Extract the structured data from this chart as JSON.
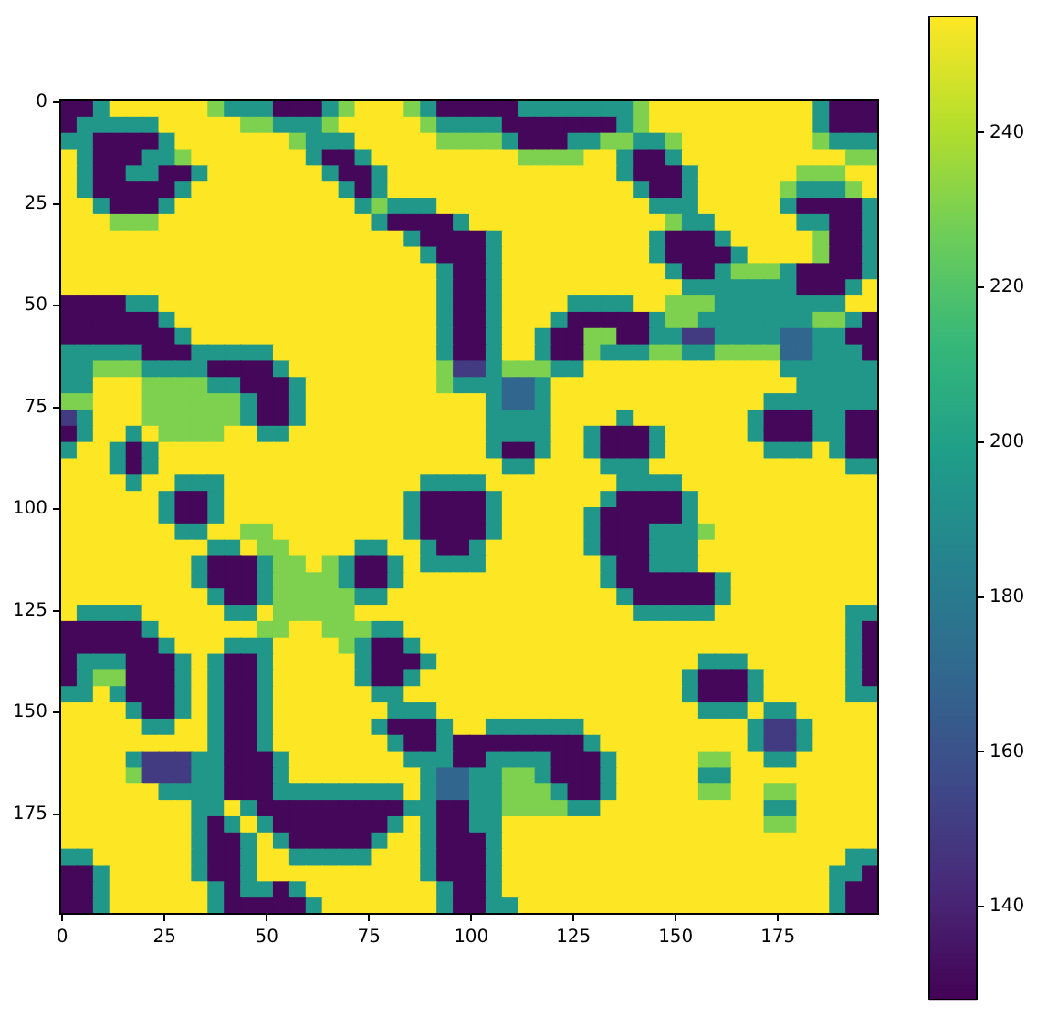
{
  "chart_data": {
    "type": "heatmap",
    "xlim": [
      -0.5,
      199.5
    ],
    "xticks": [
      0,
      25,
      50,
      75,
      100,
      125,
      150,
      175
    ],
    "ylim": [
      199.5,
      -0.5
    ],
    "yticks": [
      0,
      25,
      50,
      75,
      100,
      125,
      150,
      175
    ],
    "clim": [
      128,
      255
    ],
    "cticks": [
      140,
      160,
      180,
      200,
      220,
      240
    ],
    "cells": [
      [
        130,
        130,
        195,
        255,
        255,
        255,
        255,
        255,
        255,
        230,
        195,
        195,
        195,
        130,
        130,
        130,
        195,
        230,
        255,
        255,
        255,
        230,
        195,
        130,
        130,
        130,
        130,
        130,
        195,
        195,
        195,
        195,
        195,
        195,
        195,
        230,
        255,
        255,
        255,
        255,
        255,
        255,
        255,
        255,
        255,
        255,
        195,
        130,
        130,
        130
      ],
      [
        130,
        195,
        195,
        195,
        195,
        195,
        255,
        255,
        255,
        255,
        255,
        230,
        230,
        195,
        195,
        195,
        230,
        255,
        255,
        255,
        255,
        255,
        230,
        195,
        195,
        195,
        195,
        130,
        130,
        130,
        130,
        130,
        130,
        130,
        195,
        230,
        255,
        255,
        255,
        255,
        255,
        255,
        255,
        255,
        255,
        255,
        195,
        130,
        130,
        130
      ],
      [
        195,
        195,
        130,
        130,
        130,
        130,
        195,
        255,
        255,
        255,
        255,
        255,
        255,
        255,
        230,
        195,
        195,
        195,
        255,
        255,
        255,
        255,
        255,
        230,
        230,
        230,
        230,
        195,
        130,
        130,
        130,
        195,
        195,
        230,
        230,
        195,
        195,
        230,
        255,
        255,
        255,
        255,
        255,
        255,
        255,
        255,
        230,
        195,
        195,
        195
      ],
      [
        255,
        195,
        130,
        130,
        130,
        195,
        195,
        230,
        255,
        255,
        255,
        255,
        255,
        255,
        255,
        195,
        130,
        130,
        195,
        255,
        255,
        255,
        255,
        255,
        255,
        255,
        255,
        255,
        230,
        230,
        230,
        230,
        255,
        255,
        195,
        130,
        130,
        195,
        255,
        255,
        255,
        255,
        255,
        255,
        255,
        255,
        255,
        255,
        230,
        230
      ],
      [
        255,
        195,
        130,
        130,
        195,
        195,
        130,
        130,
        195,
        255,
        255,
        255,
        255,
        255,
        255,
        255,
        195,
        130,
        130,
        195,
        255,
        255,
        255,
        255,
        255,
        255,
        255,
        255,
        255,
        255,
        255,
        255,
        255,
        255,
        195,
        130,
        130,
        130,
        195,
        255,
        255,
        255,
        255,
        255,
        255,
        230,
        230,
        230,
        255,
        255
      ],
      [
        255,
        195,
        130,
        130,
        130,
        130,
        130,
        195,
        255,
        255,
        255,
        255,
        255,
        255,
        255,
        255,
        255,
        195,
        130,
        195,
        255,
        255,
        255,
        255,
        255,
        255,
        255,
        255,
        255,
        255,
        255,
        255,
        255,
        255,
        255,
        195,
        130,
        130,
        195,
        255,
        255,
        255,
        255,
        255,
        230,
        195,
        195,
        195,
        230,
        255
      ],
      [
        255,
        255,
        195,
        130,
        130,
        130,
        195,
        255,
        255,
        255,
        255,
        255,
        255,
        255,
        255,
        255,
        255,
        255,
        195,
        230,
        195,
        195,
        195,
        255,
        255,
        255,
        255,
        255,
        255,
        255,
        255,
        255,
        255,
        255,
        255,
        255,
        195,
        195,
        195,
        255,
        255,
        255,
        255,
        255,
        195,
        130,
        130,
        130,
        130,
        195
      ],
      [
        255,
        255,
        255,
        230,
        230,
        230,
        255,
        255,
        255,
        255,
        255,
        255,
        255,
        255,
        255,
        255,
        255,
        255,
        255,
        195,
        130,
        130,
        130,
        130,
        195,
        255,
        255,
        255,
        255,
        255,
        255,
        255,
        255,
        255,
        255,
        255,
        255,
        230,
        195,
        195,
        255,
        255,
        255,
        255,
        255,
        195,
        195,
        130,
        130,
        195
      ],
      [
        255,
        255,
        255,
        255,
        255,
        255,
        255,
        255,
        255,
        255,
        255,
        255,
        255,
        255,
        255,
        255,
        255,
        255,
        255,
        255,
        255,
        195,
        130,
        130,
        130,
        130,
        195,
        255,
        255,
        255,
        255,
        255,
        255,
        255,
        255,
        255,
        195,
        130,
        130,
        130,
        195,
        255,
        255,
        255,
        255,
        255,
        230,
        130,
        130,
        195
      ],
      [
        255,
        255,
        255,
        255,
        255,
        255,
        255,
        255,
        255,
        255,
        255,
        255,
        255,
        255,
        255,
        255,
        255,
        255,
        255,
        255,
        255,
        255,
        195,
        130,
        130,
        130,
        195,
        255,
        255,
        255,
        255,
        255,
        255,
        255,
        255,
        255,
        195,
        130,
        130,
        130,
        130,
        195,
        255,
        255,
        255,
        255,
        230,
        130,
        130,
        195
      ],
      [
        255,
        255,
        255,
        255,
        255,
        255,
        255,
        255,
        255,
        255,
        255,
        255,
        255,
        255,
        255,
        255,
        255,
        255,
        255,
        255,
        255,
        255,
        255,
        195,
        130,
        130,
        195,
        255,
        255,
        255,
        255,
        255,
        255,
        255,
        255,
        255,
        255,
        195,
        130,
        130,
        195,
        230,
        230,
        230,
        195,
        130,
        130,
        130,
        130,
        195
      ],
      [
        255,
        255,
        255,
        255,
        255,
        255,
        255,
        255,
        255,
        255,
        255,
        255,
        255,
        255,
        255,
        255,
        255,
        255,
        255,
        255,
        255,
        255,
        255,
        195,
        130,
        130,
        195,
        255,
        255,
        255,
        255,
        255,
        255,
        255,
        255,
        255,
        255,
        255,
        195,
        195,
        195,
        195,
        195,
        195,
        195,
        130,
        130,
        130,
        195,
        255
      ],
      [
        130,
        130,
        130,
        130,
        195,
        195,
        255,
        255,
        255,
        255,
        255,
        255,
        255,
        255,
        255,
        255,
        255,
        255,
        255,
        255,
        255,
        255,
        255,
        195,
        130,
        130,
        195,
        255,
        255,
        255,
        255,
        195,
        195,
        195,
        195,
        255,
        255,
        230,
        230,
        230,
        195,
        195,
        195,
        195,
        195,
        195,
        195,
        195,
        255,
        255
      ],
      [
        130,
        130,
        130,
        130,
        130,
        130,
        195,
        255,
        255,
        255,
        255,
        255,
        255,
        255,
        255,
        255,
        255,
        255,
        255,
        255,
        255,
        255,
        255,
        195,
        130,
        130,
        195,
        255,
        255,
        255,
        195,
        130,
        130,
        130,
        130,
        130,
        195,
        230,
        230,
        195,
        195,
        195,
        195,
        195,
        195,
        195,
        230,
        230,
        195,
        130
      ],
      [
        130,
        130,
        130,
        130,
        130,
        130,
        130,
        195,
        255,
        255,
        255,
        255,
        255,
        255,
        255,
        255,
        255,
        255,
        255,
        255,
        255,
        255,
        255,
        195,
        130,
        130,
        195,
        255,
        255,
        195,
        130,
        130,
        230,
        230,
        130,
        130,
        195,
        195,
        150,
        150,
        195,
        195,
        195,
        195,
        170,
        170,
        195,
        195,
        130,
        130
      ],
      [
        195,
        195,
        195,
        195,
        195,
        130,
        130,
        130,
        195,
        195,
        195,
        195,
        195,
        255,
        255,
        255,
        255,
        255,
        255,
        255,
        255,
        255,
        255,
        195,
        130,
        130,
        195,
        255,
        255,
        195,
        130,
        130,
        230,
        195,
        195,
        195,
        230,
        230,
        195,
        195,
        230,
        230,
        230,
        230,
        170,
        170,
        195,
        195,
        195,
        130
      ],
      [
        195,
        195,
        230,
        230,
        230,
        195,
        195,
        195,
        195,
        130,
        130,
        130,
        130,
        195,
        255,
        255,
        255,
        255,
        255,
        255,
        255,
        255,
        255,
        230,
        150,
        150,
        195,
        230,
        230,
        230,
        195,
        195,
        255,
        255,
        255,
        255,
        255,
        255,
        255,
        255,
        255,
        255,
        255,
        255,
        195,
        195,
        195,
        195,
        195,
        195
      ],
      [
        195,
        195,
        255,
        255,
        255,
        230,
        230,
        230,
        230,
        195,
        195,
        130,
        130,
        130,
        195,
        255,
        255,
        255,
        255,
        255,
        255,
        255,
        255,
        230,
        195,
        195,
        195,
        170,
        170,
        195,
        255,
        255,
        255,
        255,
        255,
        255,
        255,
        255,
        255,
        255,
        255,
        255,
        255,
        255,
        255,
        195,
        195,
        195,
        195,
        195
      ],
      [
        230,
        230,
        255,
        255,
        255,
        230,
        230,
        230,
        230,
        230,
        230,
        195,
        130,
        130,
        195,
        255,
        255,
        255,
        255,
        255,
        255,
        255,
        255,
        255,
        255,
        255,
        195,
        170,
        170,
        195,
        255,
        255,
        255,
        255,
        255,
        255,
        255,
        255,
        255,
        255,
        255,
        255,
        255,
        195,
        195,
        195,
        195,
        195,
        195,
        195
      ],
      [
        150,
        195,
        255,
        255,
        255,
        230,
        230,
        230,
        230,
        230,
        230,
        195,
        130,
        130,
        195,
        255,
        255,
        255,
        255,
        255,
        255,
        255,
        255,
        255,
        255,
        255,
        195,
        195,
        195,
        195,
        255,
        255,
        255,
        255,
        195,
        255,
        255,
        255,
        255,
        255,
        255,
        255,
        195,
        130,
        130,
        130,
        195,
        195,
        130,
        130
      ],
      [
        130,
        195,
        255,
        255,
        195,
        255,
        230,
        230,
        230,
        230,
        255,
        255,
        195,
        195,
        255,
        255,
        255,
        255,
        255,
        255,
        255,
        255,
        255,
        255,
        255,
        255,
        195,
        195,
        195,
        195,
        255,
        255,
        195,
        130,
        130,
        130,
        195,
        255,
        255,
        255,
        255,
        255,
        195,
        130,
        130,
        130,
        195,
        195,
        130,
        130
      ],
      [
        195,
        255,
        255,
        195,
        130,
        195,
        255,
        255,
        255,
        255,
        255,
        255,
        255,
        255,
        255,
        255,
        255,
        255,
        255,
        255,
        255,
        255,
        255,
        255,
        255,
        255,
        195,
        130,
        130,
        195,
        255,
        255,
        195,
        130,
        130,
        130,
        195,
        255,
        255,
        255,
        255,
        255,
        255,
        195,
        195,
        195,
        255,
        195,
        130,
        130
      ],
      [
        255,
        255,
        255,
        195,
        130,
        195,
        255,
        255,
        255,
        255,
        255,
        255,
        255,
        255,
        255,
        255,
        255,
        255,
        255,
        255,
        255,
        255,
        255,
        255,
        255,
        255,
        255,
        195,
        195,
        255,
        255,
        255,
        255,
        195,
        195,
        195,
        255,
        255,
        255,
        255,
        255,
        255,
        255,
        255,
        255,
        255,
        255,
        255,
        195,
        195
      ],
      [
        255,
        255,
        255,
        255,
        195,
        255,
        255,
        195,
        195,
        195,
        255,
        255,
        255,
        255,
        255,
        255,
        255,
        255,
        255,
        255,
        255,
        255,
        195,
        195,
        195,
        195,
        255,
        255,
        255,
        255,
        255,
        255,
        255,
        255,
        195,
        195,
        195,
        195,
        255,
        255,
        255,
        255,
        255,
        255,
        255,
        255,
        255,
        255,
        255,
        255
      ],
      [
        255,
        255,
        255,
        255,
        255,
        255,
        195,
        130,
        130,
        195,
        255,
        255,
        255,
        255,
        255,
        255,
        255,
        255,
        255,
        255,
        255,
        195,
        130,
        130,
        130,
        130,
        195,
        255,
        255,
        255,
        255,
        255,
        255,
        195,
        130,
        130,
        130,
        130,
        195,
        255,
        255,
        255,
        255,
        255,
        255,
        255,
        255,
        255,
        255,
        255
      ],
      [
        255,
        255,
        255,
        255,
        255,
        255,
        195,
        130,
        130,
        195,
        255,
        255,
        255,
        255,
        255,
        255,
        255,
        255,
        255,
        255,
        255,
        195,
        130,
        130,
        130,
        130,
        195,
        255,
        255,
        255,
        255,
        255,
        195,
        130,
        130,
        130,
        130,
        130,
        195,
        255,
        255,
        255,
        255,
        255,
        255,
        255,
        255,
        255,
        255,
        255
      ],
      [
        255,
        255,
        255,
        255,
        255,
        255,
        255,
        195,
        195,
        255,
        255,
        230,
        230,
        255,
        255,
        255,
        255,
        255,
        255,
        255,
        255,
        195,
        130,
        130,
        130,
        130,
        195,
        255,
        255,
        255,
        255,
        255,
        195,
        130,
        130,
        130,
        195,
        195,
        195,
        230,
        255,
        255,
        255,
        255,
        255,
        255,
        255,
        255,
        255,
        255
      ],
      [
        255,
        255,
        255,
        255,
        255,
        255,
        255,
        255,
        255,
        195,
        195,
        255,
        230,
        230,
        255,
        255,
        255,
        255,
        195,
        195,
        255,
        255,
        195,
        130,
        130,
        195,
        255,
        255,
        255,
        255,
        255,
        255,
        195,
        130,
        130,
        130,
        195,
        195,
        195,
        255,
        255,
        255,
        255,
        255,
        255,
        255,
        255,
        255,
        255,
        255
      ],
      [
        255,
        255,
        255,
        255,
        255,
        255,
        255,
        255,
        195,
        130,
        130,
        130,
        195,
        230,
        230,
        255,
        230,
        195,
        130,
        130,
        195,
        255,
        195,
        195,
        195,
        195,
        255,
        255,
        255,
        255,
        255,
        255,
        255,
        195,
        130,
        130,
        195,
        195,
        195,
        255,
        255,
        255,
        255,
        255,
        255,
        255,
        255,
        255,
        255,
        255
      ],
      [
        255,
        255,
        255,
        255,
        255,
        255,
        255,
        255,
        195,
        130,
        130,
        130,
        195,
        230,
        230,
        230,
        230,
        195,
        130,
        130,
        195,
        255,
        255,
        255,
        255,
        255,
        255,
        255,
        255,
        255,
        255,
        255,
        255,
        195,
        130,
        130,
        130,
        130,
        130,
        130,
        195,
        255,
        255,
        255,
        255,
        255,
        255,
        255,
        255,
        255
      ],
      [
        255,
        255,
        255,
        255,
        255,
        255,
        255,
        255,
        255,
        195,
        130,
        130,
        195,
        230,
        230,
        230,
        230,
        230,
        195,
        195,
        255,
        255,
        255,
        255,
        255,
        255,
        255,
        255,
        255,
        255,
        255,
        255,
        255,
        255,
        195,
        130,
        130,
        130,
        130,
        130,
        195,
        255,
        255,
        255,
        255,
        255,
        255,
        255,
        255,
        255
      ],
      [
        255,
        195,
        195,
        195,
        195,
        255,
        255,
        255,
        255,
        255,
        195,
        195,
        255,
        230,
        230,
        230,
        230,
        230,
        255,
        255,
        255,
        255,
        255,
        255,
        255,
        255,
        255,
        255,
        255,
        255,
        255,
        255,
        255,
        255,
        255,
        195,
        195,
        195,
        195,
        195,
        255,
        255,
        255,
        255,
        255,
        255,
        255,
        255,
        195,
        195
      ],
      [
        130,
        130,
        130,
        130,
        130,
        195,
        255,
        255,
        255,
        255,
        255,
        255,
        230,
        230,
        255,
        255,
        230,
        230,
        230,
        195,
        195,
        255,
        255,
        255,
        255,
        255,
        255,
        255,
        255,
        255,
        255,
        255,
        255,
        255,
        255,
        255,
        255,
        255,
        255,
        255,
        255,
        255,
        255,
        255,
        255,
        255,
        255,
        255,
        195,
        130
      ],
      [
        130,
        130,
        130,
        130,
        130,
        130,
        195,
        255,
        255,
        255,
        195,
        195,
        195,
        255,
        255,
        255,
        255,
        230,
        195,
        130,
        130,
        195,
        255,
        255,
        255,
        255,
        255,
        255,
        255,
        255,
        255,
        255,
        255,
        255,
        255,
        255,
        255,
        255,
        255,
        255,
        255,
        255,
        255,
        255,
        255,
        255,
        255,
        255,
        195,
        130
      ],
      [
        130,
        195,
        195,
        195,
        130,
        130,
        130,
        195,
        255,
        195,
        130,
        130,
        195,
        255,
        255,
        255,
        255,
        255,
        195,
        130,
        130,
        130,
        195,
        255,
        255,
        255,
        255,
        255,
        255,
        255,
        255,
        255,
        255,
        255,
        255,
        255,
        255,
        255,
        255,
        195,
        195,
        195,
        255,
        255,
        255,
        255,
        255,
        255,
        195,
        130
      ],
      [
        130,
        195,
        230,
        230,
        130,
        130,
        130,
        195,
        255,
        195,
        130,
        130,
        195,
        255,
        255,
        255,
        255,
        255,
        195,
        130,
        130,
        195,
        255,
        255,
        255,
        255,
        255,
        255,
        255,
        255,
        255,
        255,
        255,
        255,
        255,
        255,
        255,
        255,
        195,
        130,
        130,
        130,
        195,
        255,
        255,
        255,
        255,
        255,
        195,
        130
      ],
      [
        195,
        195,
        255,
        195,
        130,
        130,
        130,
        195,
        255,
        195,
        130,
        130,
        195,
        255,
        255,
        255,
        255,
        255,
        255,
        195,
        195,
        255,
        255,
        255,
        255,
        255,
        255,
        255,
        255,
        255,
        255,
        255,
        255,
        255,
        255,
        255,
        255,
        255,
        195,
        130,
        130,
        130,
        195,
        255,
        255,
        255,
        255,
        255,
        195,
        195
      ],
      [
        255,
        255,
        255,
        255,
        195,
        130,
        130,
        195,
        255,
        195,
        130,
        130,
        195,
        255,
        255,
        255,
        255,
        255,
        255,
        255,
        195,
        195,
        195,
        255,
        255,
        255,
        255,
        255,
        255,
        255,
        255,
        255,
        255,
        255,
        255,
        255,
        255,
        255,
        255,
        195,
        195,
        195,
        255,
        195,
        195,
        255,
        255,
        255,
        255,
        255
      ],
      [
        255,
        255,
        255,
        255,
        255,
        195,
        195,
        255,
        255,
        195,
        130,
        130,
        195,
        255,
        255,
        255,
        255,
        255,
        255,
        195,
        130,
        130,
        130,
        195,
        255,
        255,
        195,
        195,
        195,
        195,
        195,
        195,
        255,
        255,
        255,
        255,
        255,
        255,
        255,
        255,
        255,
        255,
        195,
        150,
        150,
        195,
        255,
        255,
        255,
        255
      ],
      [
        255,
        255,
        255,
        255,
        255,
        255,
        255,
        255,
        255,
        195,
        130,
        130,
        195,
        255,
        255,
        255,
        255,
        255,
        255,
        255,
        195,
        130,
        130,
        195,
        130,
        130,
        130,
        130,
        130,
        130,
        130,
        130,
        195,
        255,
        255,
        255,
        255,
        255,
        255,
        255,
        255,
        255,
        195,
        150,
        150,
        195,
        255,
        255,
        255,
        255
      ],
      [
        255,
        255,
        255,
        255,
        195,
        150,
        150,
        150,
        195,
        195,
        130,
        130,
        130,
        195,
        255,
        255,
        255,
        255,
        255,
        255,
        255,
        195,
        195,
        195,
        130,
        130,
        195,
        195,
        195,
        195,
        130,
        130,
        130,
        195,
        255,
        255,
        255,
        255,
        255,
        230,
        230,
        255,
        255,
        195,
        195,
        255,
        255,
        255,
        255,
        255
      ],
      [
        255,
        255,
        255,
        255,
        230,
        150,
        150,
        150,
        195,
        195,
        130,
        130,
        130,
        195,
        255,
        255,
        255,
        255,
        255,
        255,
        255,
        255,
        195,
        170,
        170,
        195,
        195,
        230,
        230,
        195,
        130,
        130,
        130,
        195,
        255,
        255,
        255,
        255,
        255,
        195,
        195,
        255,
        255,
        255,
        255,
        255,
        255,
        255,
        255,
        255
      ],
      [
        255,
        255,
        255,
        255,
        255,
        255,
        195,
        195,
        195,
        195,
        130,
        130,
        130,
        195,
        195,
        195,
        195,
        195,
        195,
        195,
        195,
        255,
        195,
        170,
        170,
        195,
        195,
        230,
        230,
        230,
        195,
        130,
        130,
        195,
        255,
        255,
        255,
        255,
        255,
        230,
        230,
        255,
        255,
        230,
        230,
        255,
        255,
        255,
        255,
        255
      ],
      [
        255,
        255,
        255,
        255,
        255,
        255,
        255,
        255,
        195,
        195,
        255,
        195,
        130,
        130,
        130,
        130,
        130,
        130,
        130,
        130,
        130,
        195,
        195,
        130,
        130,
        195,
        195,
        230,
        230,
        230,
        230,
        195,
        195,
        255,
        255,
        255,
        255,
        255,
        255,
        255,
        255,
        255,
        255,
        195,
        195,
        255,
        255,
        255,
        255,
        255
      ],
      [
        255,
        255,
        255,
        255,
        255,
        255,
        255,
        255,
        195,
        130,
        195,
        255,
        195,
        130,
        130,
        130,
        130,
        130,
        130,
        130,
        195,
        255,
        195,
        130,
        130,
        195,
        195,
        255,
        255,
        255,
        255,
        255,
        255,
        255,
        255,
        255,
        255,
        255,
        255,
        255,
        255,
        255,
        255,
        230,
        230,
        255,
        255,
        255,
        255,
        255
      ],
      [
        255,
        255,
        255,
        255,
        255,
        255,
        255,
        255,
        195,
        130,
        130,
        195,
        255,
        195,
        130,
        130,
        130,
        130,
        130,
        195,
        255,
        255,
        195,
        130,
        130,
        130,
        195,
        255,
        255,
        255,
        255,
        255,
        255,
        255,
        255,
        255,
        255,
        255,
        255,
        255,
        255,
        255,
        255,
        255,
        255,
        255,
        255,
        255,
        255,
        255
      ],
      [
        195,
        195,
        255,
        255,
        255,
        255,
        255,
        255,
        195,
        130,
        130,
        195,
        255,
        255,
        195,
        195,
        195,
        195,
        195,
        255,
        255,
        255,
        195,
        130,
        130,
        130,
        195,
        255,
        255,
        255,
        255,
        255,
        255,
        255,
        255,
        255,
        255,
        255,
        255,
        255,
        255,
        255,
        255,
        255,
        255,
        255,
        255,
        255,
        195,
        195
      ],
      [
        130,
        130,
        195,
        255,
        255,
        255,
        255,
        255,
        195,
        130,
        130,
        195,
        255,
        255,
        255,
        255,
        255,
        255,
        255,
        255,
        255,
        255,
        195,
        130,
        130,
        130,
        195,
        255,
        255,
        255,
        255,
        255,
        255,
        255,
        255,
        255,
        255,
        255,
        255,
        255,
        255,
        255,
        255,
        255,
        255,
        255,
        255,
        195,
        195,
        130
      ],
      [
        130,
        130,
        195,
        255,
        255,
        255,
        255,
        255,
        255,
        195,
        130,
        195,
        195,
        130,
        195,
        255,
        255,
        255,
        255,
        255,
        255,
        255,
        255,
        195,
        130,
        130,
        195,
        255,
        255,
        255,
        255,
        255,
        255,
        255,
        255,
        255,
        255,
        255,
        255,
        255,
        255,
        255,
        255,
        255,
        255,
        255,
        255,
        195,
        130,
        130
      ],
      [
        130,
        130,
        195,
        255,
        255,
        255,
        255,
        255,
        255,
        195,
        130,
        130,
        130,
        130,
        130,
        195,
        255,
        255,
        255,
        255,
        255,
        255,
        255,
        195,
        130,
        130,
        195,
        195,
        255,
        255,
        255,
        255,
        255,
        255,
        255,
        255,
        255,
        255,
        255,
        255,
        255,
        255,
        255,
        255,
        255,
        255,
        255,
        195,
        130,
        130
      ]
    ]
  }
}
